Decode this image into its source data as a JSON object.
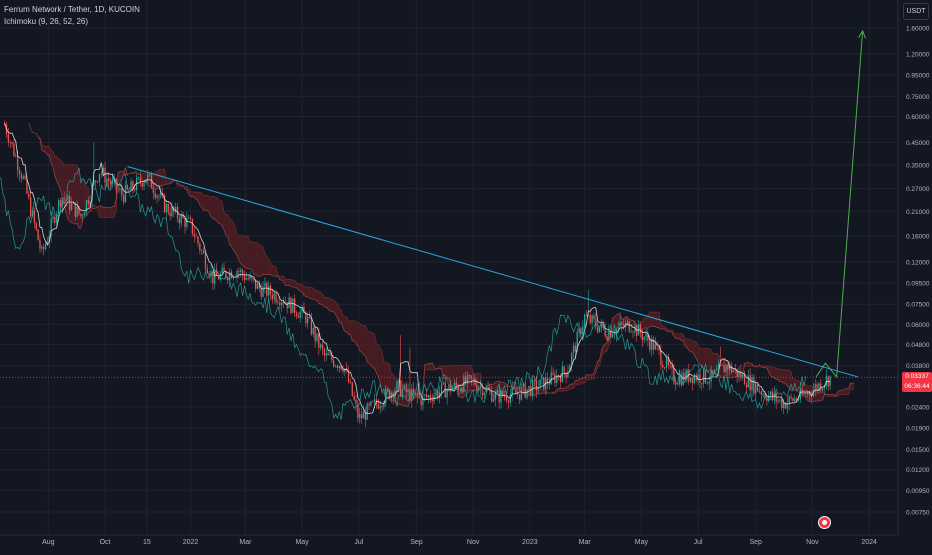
{
  "header": {
    "symbol_line": "Ferrum Network / Tether, 1D, KUCOIN",
    "indicator_line": "Ichimoku (9, 26, 52, 26)"
  },
  "price_axis": {
    "unit_label": "USDT",
    "current_price": "0.03337",
    "countdown": "06:36:44"
  },
  "colors": {
    "background": "#131722",
    "grid": "#1f2330",
    "up_candle": "#26a69a",
    "down_candle": "#ef5350",
    "kumo_fill": "#5a1f24",
    "conversion_line": "#e8e8e8",
    "lagging_line": "#26a69a",
    "trendline": "#2aa8e0",
    "projection": "#4caf50",
    "price_line": "#f23645"
  },
  "chart_data": {
    "type": "candlestick",
    "scale": "log",
    "y_ticks": [
      "1.60000",
      "1.20000",
      "0.95000",
      "0.75000",
      "0.60000",
      "0.45000",
      "0.35000",
      "0.27000",
      "0.21000",
      "0.16000",
      "0.12000",
      "0.09500",
      "0.07500",
      "0.06000",
      "0.04800",
      "0.03800",
      "0.02400",
      "0.01900",
      "0.01500",
      "0.01200",
      "0.00950",
      "0.00750"
    ],
    "y_tick_values": [
      1.6,
      1.2,
      0.95,
      0.75,
      0.6,
      0.45,
      0.35,
      0.27,
      0.21,
      0.16,
      0.12,
      0.095,
      0.075,
      0.06,
      0.048,
      0.038,
      0.024,
      0.019,
      0.015,
      0.012,
      0.0095,
      0.0075
    ],
    "x_ticks": [
      "Aug",
      "Oct",
      "15",
      "2022",
      "Mar",
      "May",
      "Jul",
      "Sep",
      "Nov",
      "2023",
      "Mar",
      "May",
      "Jul",
      "Sep",
      "Nov",
      "2024"
    ],
    "x_tick_dates": [
      "2021-08-01",
      "2021-10-01",
      "2021-11-15",
      "2022-01-01",
      "2022-03-01",
      "2022-05-01",
      "2022-07-01",
      "2022-09-01",
      "2022-11-01",
      "2023-01-01",
      "2023-03-01",
      "2023-05-01",
      "2023-07-01",
      "2023-09-01",
      "2023-11-01",
      "2024-01-01"
    ],
    "current_price": 0.03337,
    "price_path": [
      {
        "date": "2021-06-15",
        "price": 0.55
      },
      {
        "date": "2021-07-05",
        "price": 0.3
      },
      {
        "date": "2021-07-25",
        "price": 0.13
      },
      {
        "date": "2021-08-15",
        "price": 0.25
      },
      {
        "date": "2021-09-05",
        "price": 0.2
      },
      {
        "date": "2021-09-25",
        "price": 0.33
      },
      {
        "date": "2021-10-20",
        "price": 0.25
      },
      {
        "date": "2021-11-15",
        "price": 0.31
      },
      {
        "date": "2021-12-05",
        "price": 0.22
      },
      {
        "date": "2022-01-01",
        "price": 0.18
      },
      {
        "date": "2022-01-25",
        "price": 0.1
      },
      {
        "date": "2022-02-20",
        "price": 0.11
      },
      {
        "date": "2022-03-15",
        "price": 0.09
      },
      {
        "date": "2022-04-10",
        "price": 0.08
      },
      {
        "date": "2022-05-05",
        "price": 0.065
      },
      {
        "date": "2022-05-25",
        "price": 0.042
      },
      {
        "date": "2022-06-15",
        "price": 0.038
      },
      {
        "date": "2022-07-01",
        "price": 0.021
      },
      {
        "date": "2022-07-20",
        "price": 0.025
      },
      {
        "date": "2022-08-10",
        "price": 0.03
      },
      {
        "date": "2022-09-05",
        "price": 0.026
      },
      {
        "date": "2022-10-01",
        "price": 0.029
      },
      {
        "date": "2022-11-01",
        "price": 0.032
      },
      {
        "date": "2022-11-25",
        "price": 0.027
      },
      {
        "date": "2022-12-20",
        "price": 0.028
      },
      {
        "date": "2023-01-15",
        "price": 0.031
      },
      {
        "date": "2023-02-10",
        "price": 0.036
      },
      {
        "date": "2023-03-01",
        "price": 0.065
      },
      {
        "date": "2023-03-25",
        "price": 0.055
      },
      {
        "date": "2023-04-20",
        "price": 0.06
      },
      {
        "date": "2023-05-15",
        "price": 0.047
      },
      {
        "date": "2023-06-05",
        "price": 0.033
      },
      {
        "date": "2023-06-25",
        "price": 0.034
      },
      {
        "date": "2023-07-15",
        "price": 0.033
      },
      {
        "date": "2023-08-01",
        "price": 0.038
      },
      {
        "date": "2023-08-20",
        "price": 0.033
      },
      {
        "date": "2023-09-10",
        "price": 0.028
      },
      {
        "date": "2023-10-01",
        "price": 0.025
      },
      {
        "date": "2023-10-20",
        "price": 0.027
      },
      {
        "date": "2023-11-10",
        "price": 0.031
      },
      {
        "date": "2023-11-20",
        "price": 0.0334
      }
    ],
    "trendline": [
      {
        "date": "2021-10-25",
        "price": 0.345
      },
      {
        "date": "2023-12-20",
        "price": 0.0335
      }
    ],
    "projection": [
      {
        "date": "2023-11-05",
        "price": 0.0335
      },
      {
        "date": "2023-11-15",
        "price": 0.039
      },
      {
        "date": "2023-11-27",
        "price": 0.0335
      },
      {
        "date": "2023-12-25",
        "price": 1.55
      }
    ]
  }
}
